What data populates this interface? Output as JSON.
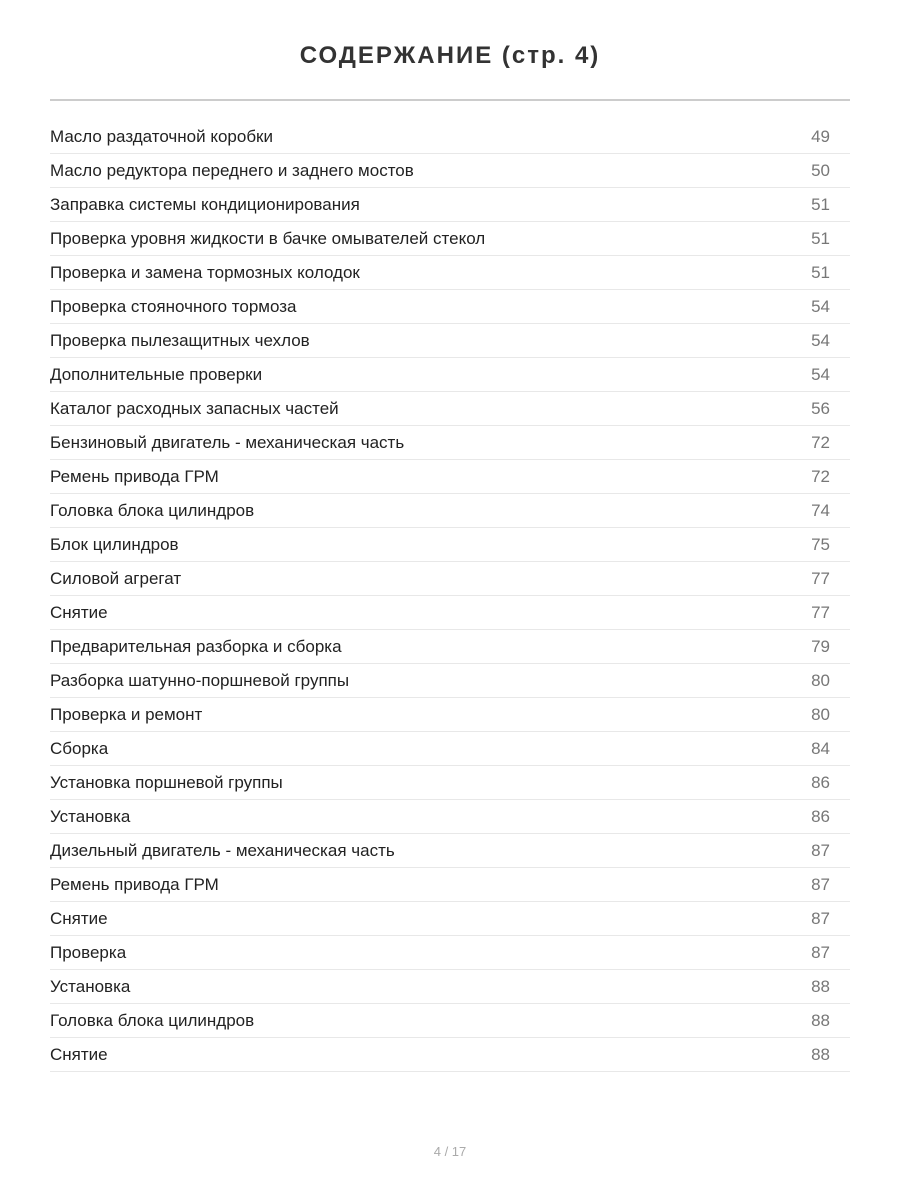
{
  "title": "СОДЕРЖАНИЕ (стр. 4)",
  "entries": [
    {
      "text": "Масло раздаточной коробки",
      "page": "49"
    },
    {
      "text": "Масло редуктора переднего и заднего мостов",
      "page": "50"
    },
    {
      "text": "Заправка системы кондиционирования",
      "page": "51"
    },
    {
      "text": "Проверка уровня жидкости в бачке омывателей стекол",
      "page": "51"
    },
    {
      "text": "Проверка и замена тормозных колодок",
      "page": "51"
    },
    {
      "text": "Проверка стояночного тормоза",
      "page": "54"
    },
    {
      "text": "Проверка пылезащитных чехлов",
      "page": "54"
    },
    {
      "text": "Дополнительные проверки",
      "page": "54"
    },
    {
      "text": "Каталог расходных запасных частей",
      "page": "56"
    },
    {
      "text": "Бензиновый двигатель - механическая часть",
      "page": "72"
    },
    {
      "text": "Ремень привода ГРМ",
      "page": "72"
    },
    {
      "text": "Головка блока цилиндров",
      "page": "74"
    },
    {
      "text": "Блок цилиндров",
      "page": "75"
    },
    {
      "text": "Силовой агрегат",
      "page": "77"
    },
    {
      "text": "Снятие",
      "page": "77"
    },
    {
      "text": "Предварительная разборка и сборка",
      "page": "79"
    },
    {
      "text": "Разборка шатунно-поршневой группы",
      "page": "80"
    },
    {
      "text": "Проверка и ремонт",
      "page": "80"
    },
    {
      "text": "Сборка",
      "page": "84"
    },
    {
      "text": "Установка поршневой группы",
      "page": "86"
    },
    {
      "text": "Установка",
      "page": "86"
    },
    {
      "text": "Дизельный двигатель - механическая часть",
      "page": "87"
    },
    {
      "text": "Ремень привода ГРМ",
      "page": "87"
    },
    {
      "text": "Снятие",
      "page": "87"
    },
    {
      "text": "Проверка",
      "page": "87"
    },
    {
      "text": "Установка",
      "page": "88"
    },
    {
      "text": "Головка блока цилиндров",
      "page": "88"
    },
    {
      "text": "Снятие",
      "page": "88"
    }
  ],
  "footer": "4 / 17"
}
